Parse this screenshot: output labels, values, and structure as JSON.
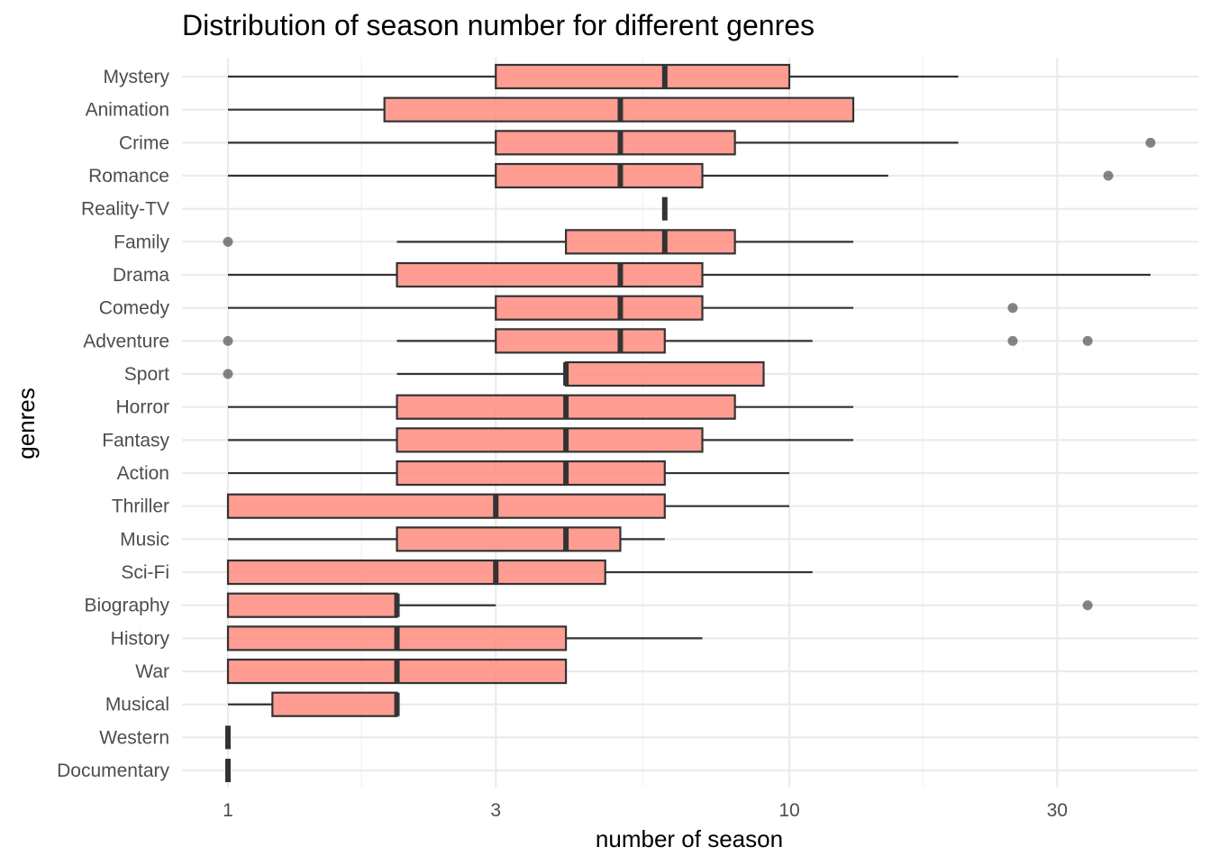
{
  "chart_data": {
    "type": "boxplot",
    "orientation": "horizontal",
    "title": "Distribution of season number for different genres",
    "xlabel": "number of season",
    "ylabel": "genres",
    "x_scale": "log10",
    "xlim": [
      0.8,
      48
    ],
    "x_ticks": [
      1,
      3,
      10,
      30
    ],
    "x_tick_labels": [
      "1",
      "3",
      "10",
      "30"
    ],
    "x_minor_grid": [
      1.73,
      5.48,
      17.3
    ],
    "grid": true,
    "legend": "none",
    "box_fill": "#FF8C80",
    "box_stroke": "#333333",
    "categories": [
      "Mystery",
      "Animation",
      "Crime",
      "Romance",
      "Reality-TV",
      "Family",
      "Drama",
      "Comedy",
      "Adventure",
      "Sport",
      "Horror",
      "Fantasy",
      "Action",
      "Thriller",
      "Music",
      "Sci-Fi",
      "Biography",
      "History",
      "War",
      "Musical",
      "Western",
      "Documentary"
    ],
    "boxes": [
      {
        "genre": "Mystery",
        "whisker_low": 1,
        "q1": 3,
        "median": 6,
        "q3": 10,
        "whisker_high": 20,
        "outliers": []
      },
      {
        "genre": "Animation",
        "whisker_low": 1,
        "q1": 1.9,
        "median": 5,
        "q3": 13,
        "whisker_high": 13,
        "outliers": []
      },
      {
        "genre": "Crime",
        "whisker_low": 1,
        "q1": 3,
        "median": 5,
        "q3": 8,
        "whisker_high": 20,
        "outliers": [
          44
        ]
      },
      {
        "genre": "Romance",
        "whisker_low": 1,
        "q1": 3,
        "median": 5,
        "q3": 7,
        "whisker_high": 15,
        "outliers": [
          37
        ]
      },
      {
        "genre": "Reality-TV",
        "whisker_low": 6,
        "q1": 6,
        "median": 6,
        "q3": 6,
        "whisker_high": 6,
        "outliers": []
      },
      {
        "genre": "Family",
        "whisker_low": 2,
        "q1": 4,
        "median": 6,
        "q3": 8,
        "whisker_high": 13,
        "outliers": [
          1
        ]
      },
      {
        "genre": "Drama",
        "whisker_low": 1,
        "q1": 2,
        "median": 5,
        "q3": 7,
        "whisker_high": 44,
        "outliers": []
      },
      {
        "genre": "Comedy",
        "whisker_low": 1,
        "q1": 3,
        "median": 5,
        "q3": 7,
        "whisker_high": 13,
        "outliers": [
          25
        ]
      },
      {
        "genre": "Adventure",
        "whisker_low": 2,
        "q1": 3,
        "median": 5,
        "q3": 6,
        "whisker_high": 11,
        "outliers": [
          1,
          25,
          34
        ]
      },
      {
        "genre": "Sport",
        "whisker_low": 2,
        "q1": 4,
        "median": 4,
        "q3": 9,
        "whisker_high": 9,
        "outliers": [
          1
        ]
      },
      {
        "genre": "Horror",
        "whisker_low": 1,
        "q1": 2,
        "median": 4,
        "q3": 8,
        "whisker_high": 13,
        "outliers": []
      },
      {
        "genre": "Fantasy",
        "whisker_low": 1,
        "q1": 2,
        "median": 4,
        "q3": 7,
        "whisker_high": 13,
        "outliers": []
      },
      {
        "genre": "Action",
        "whisker_low": 1,
        "q1": 2,
        "median": 4,
        "q3": 6,
        "whisker_high": 10,
        "outliers": []
      },
      {
        "genre": "Thriller",
        "whisker_low": 1,
        "q1": 1,
        "median": 3,
        "q3": 6,
        "whisker_high": 10,
        "outliers": []
      },
      {
        "genre": "Music",
        "whisker_low": 1,
        "q1": 2,
        "median": 4,
        "q3": 5,
        "whisker_high": 6,
        "outliers": []
      },
      {
        "genre": "Sci-Fi",
        "whisker_low": 1,
        "q1": 1,
        "median": 3,
        "q3": 4.7,
        "whisker_high": 11,
        "outliers": []
      },
      {
        "genre": "Biography",
        "whisker_low": 1,
        "q1": 1,
        "median": 2,
        "q3": 2,
        "whisker_high": 3,
        "outliers": [
          34
        ]
      },
      {
        "genre": "History",
        "whisker_low": 1,
        "q1": 1,
        "median": 2,
        "q3": 4,
        "whisker_high": 7,
        "outliers": []
      },
      {
        "genre": "War",
        "whisker_low": 1,
        "q1": 1,
        "median": 2,
        "q3": 4,
        "whisker_high": 4,
        "outliers": []
      },
      {
        "genre": "Musical",
        "whisker_low": 1,
        "q1": 1.2,
        "median": 2,
        "q3": 2,
        "whisker_high": 2,
        "outliers": []
      },
      {
        "genre": "Western",
        "whisker_low": 1,
        "q1": 1,
        "median": 1,
        "q3": 1,
        "whisker_high": 1,
        "outliers": []
      },
      {
        "genre": "Documentary",
        "whisker_low": 1,
        "q1": 1,
        "median": 1,
        "q3": 1,
        "whisker_high": 1,
        "outliers": []
      }
    ]
  }
}
